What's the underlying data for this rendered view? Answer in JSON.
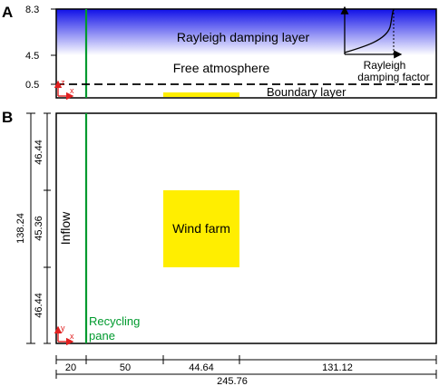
{
  "panel_a": {
    "letter": "A",
    "y_ticks": [
      "8.3",
      "4.5",
      "0.5"
    ],
    "rayleigh_label": "Rayleigh damping layer",
    "free_atmosphere_label": "Free atmosphere",
    "boundary_layer_label": "Boundary layer",
    "inset_label_line1": "Rayleigh",
    "inset_label_line2": "damping factor",
    "axis_z": "z",
    "axis_x": "x"
  },
  "panel_b": {
    "letter": "B",
    "inflow_label": "Inflow",
    "wind_farm_label": "Wind farm",
    "recycling_line1": "Recycling",
    "recycling_line2": "pane",
    "axis_y": "y",
    "axis_x": "x",
    "height_total": "138.24",
    "height_segments": [
      "46.44",
      "45.36",
      "46.44"
    ],
    "width_segments": [
      "20",
      "50",
      "44.64",
      "131.12"
    ],
    "width_total": "245.76"
  },
  "colors": {
    "damping_top": "#1010e8",
    "damping_bottom": "#ffffff",
    "recycling": "#009a2e",
    "wind_farm": "#ffee00",
    "axes_arrow": "#e02020"
  }
}
